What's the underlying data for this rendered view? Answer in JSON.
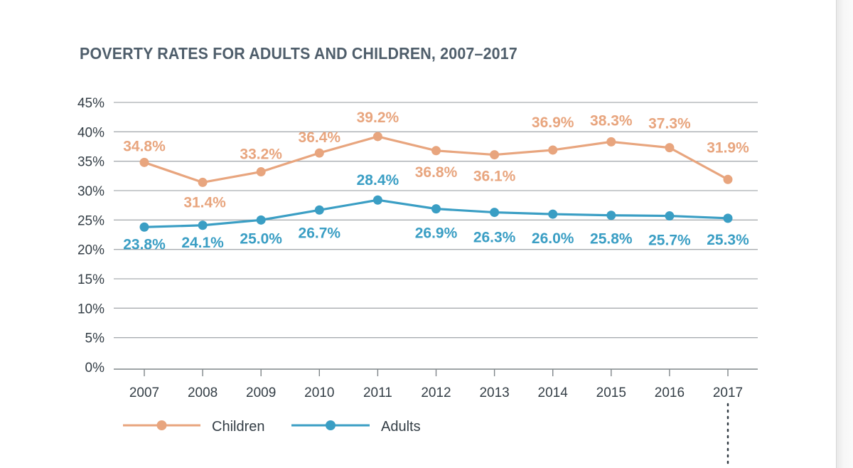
{
  "chart_data": {
    "type": "line",
    "title": "POVERTY RATES FOR ADULTS AND CHILDREN, 2007–2017",
    "xlabel": "",
    "ylabel": "",
    "ylim": [
      0,
      45
    ],
    "yticks": [
      "0%",
      "5%",
      "10%",
      "15%",
      "20%",
      "25%",
      "30%",
      "35%",
      "40%",
      "45%"
    ],
    "categories": [
      "2007",
      "2008",
      "2009",
      "2010",
      "2011",
      "2012",
      "2013",
      "2014",
      "2015",
      "2016",
      "2017"
    ],
    "grid": true,
    "legend_position": "bottom-left",
    "series": [
      {
        "name": "Children",
        "color": "#e8a57e",
        "values": [
          34.8,
          31.4,
          33.2,
          36.4,
          39.2,
          36.8,
          36.1,
          36.9,
          38.3,
          37.3,
          31.9
        ],
        "labels": [
          "34.8%",
          "31.4%",
          "33.2%",
          "36.4%",
          "39.2%",
          "36.8%",
          "36.1%",
          "36.9%",
          "38.3%",
          "37.3%",
          "31.9%"
        ]
      },
      {
        "name": "Adults",
        "color": "#3a9ec4",
        "values": [
          23.8,
          24.1,
          25.0,
          26.7,
          28.4,
          26.9,
          26.3,
          26.0,
          25.8,
          25.7,
          25.3
        ],
        "labels": [
          "23.8%",
          "24.1%",
          "25.0%",
          "26.7%",
          "28.4%",
          "26.9%",
          "26.3%",
          "26.0%",
          "25.8%",
          "25.7%",
          "25.3%"
        ]
      }
    ]
  }
}
